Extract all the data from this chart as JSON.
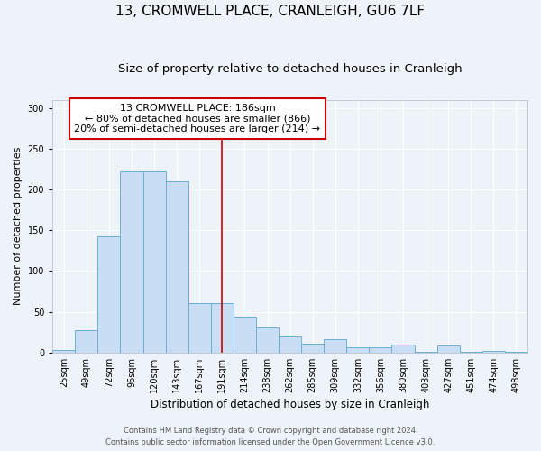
{
  "title": "13, CROMWELL PLACE, CRANLEIGH, GU6 7LF",
  "subtitle": "Size of property relative to detached houses in Cranleigh",
  "xlabel": "Distribution of detached houses by size in Cranleigh",
  "ylabel": "Number of detached properties",
  "bar_labels": [
    "25sqm",
    "49sqm",
    "72sqm",
    "96sqm",
    "120sqm",
    "143sqm",
    "167sqm",
    "191sqm",
    "214sqm",
    "238sqm",
    "262sqm",
    "285sqm",
    "309sqm",
    "332sqm",
    "356sqm",
    "380sqm",
    "403sqm",
    "427sqm",
    "451sqm",
    "474sqm",
    "498sqm"
  ],
  "bar_values": [
    3,
    27,
    143,
    222,
    222,
    210,
    61,
    61,
    44,
    31,
    20,
    11,
    16,
    6,
    6,
    10,
    1,
    9,
    1,
    2,
    1
  ],
  "bar_color": "#c9ddf5",
  "bar_edge_color": "#6baed6",
  "vline_index": 7,
  "vline_color": "#cc0000",
  "annotation_title": "13 CROMWELL PLACE: 186sqm",
  "annotation_line1": "← 80% of detached houses are smaller (866)",
  "annotation_line2": "20% of semi-detached houses are larger (214) →",
  "annotation_box_facecolor": "#ffffff",
  "annotation_box_edgecolor": "#cc0000",
  "ylim": [
    0,
    310
  ],
  "yticks": [
    0,
    50,
    100,
    150,
    200,
    250,
    300
  ],
  "footer1": "Contains HM Land Registry data © Crown copyright and database right 2024.",
  "footer2": "Contains public sector information licensed under the Open Government Licence v3.0.",
  "bg_color": "#eef2f9",
  "grid_color": "#ffffff",
  "title_fontsize": 11,
  "subtitle_fontsize": 9.5,
  "xlabel_fontsize": 8.5,
  "ylabel_fontsize": 8,
  "tick_fontsize": 7,
  "annotation_fontsize": 8,
  "footer_fontsize": 6
}
